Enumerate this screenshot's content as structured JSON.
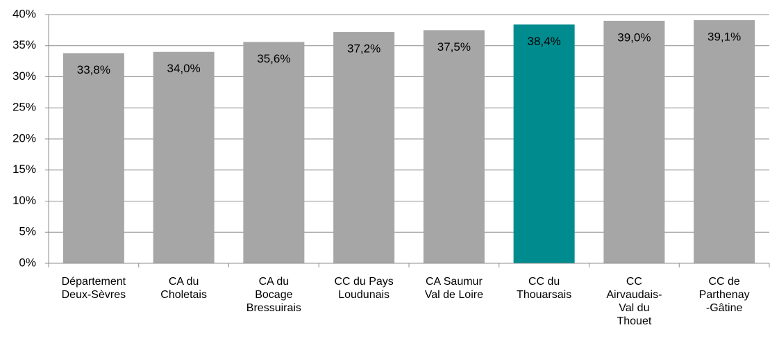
{
  "chart_data": {
    "type": "bar",
    "categories": [
      "Département\nDeux-Sèvres",
      "CA du\nCholetais",
      "CA du\nBocage\nBressuirais",
      "CC du Pays\nLoudunais",
      "CA Saumur\nVal de Loire",
      "CC du\nThouarsais",
      "CC\nAirvaudais-\nVal du\nThouet",
      "CC de\nParthenay\n-Gâtine"
    ],
    "values": [
      33.8,
      34.0,
      35.6,
      37.2,
      37.5,
      38.4,
      39.0,
      39.1
    ],
    "value_labels": [
      "33,8%",
      "34,0%",
      "35,6%",
      "37,2%",
      "37,5%",
      "38,4%",
      "39,0%",
      "39,1%"
    ],
    "colors": [
      "#a6a6a6",
      "#a6a6a6",
      "#a6a6a6",
      "#a6a6a6",
      "#a6a6a6",
      "#008b8f",
      "#a6a6a6",
      "#a6a6a6"
    ],
    "ylim": [
      0,
      40
    ],
    "yticks": [
      {
        "value": 0,
        "label": "0%"
      },
      {
        "value": 5,
        "label": "5%"
      },
      {
        "value": 10,
        "label": "10%"
      },
      {
        "value": 15,
        "label": "15%"
      },
      {
        "value": 20,
        "label": "20%"
      },
      {
        "value": 25,
        "label": "25%"
      },
      {
        "value": 30,
        "label": "30%"
      },
      {
        "value": 35,
        "label": "35%"
      },
      {
        "value": 40,
        "label": "40%"
      }
    ],
    "grid": true
  }
}
